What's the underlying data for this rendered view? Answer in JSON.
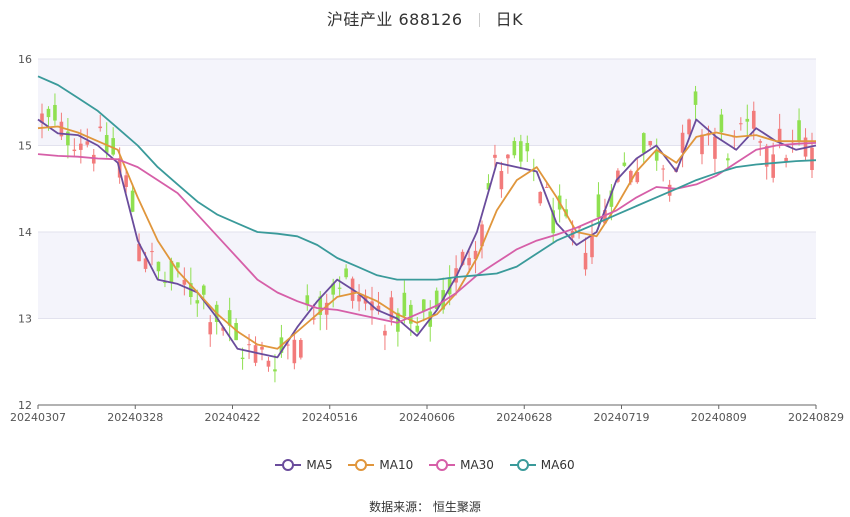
{
  "header": {
    "title": "沪硅产业 688126",
    "period": "日K"
  },
  "source_label": "数据来源： 恒生聚源",
  "colors": {
    "up": "#f27b7b",
    "down": "#8fe050",
    "MA5": "#6a4c9c",
    "MA10": "#e0963c",
    "MA30": "#d65fa8",
    "MA60": "#3a9a9a"
  },
  "chart_data": {
    "type": "candlestick",
    "title": "沪硅产业 688126",
    "ylim": [
      12,
      16
    ],
    "yticks": [
      12,
      13,
      14,
      15,
      16
    ],
    "xtick_labels": [
      "20240307",
      "20240328",
      "20240422",
      "20240516",
      "20240606",
      "20240628",
      "20240719",
      "20240809",
      "20240829"
    ],
    "series": [
      {
        "name": "MA5",
        "values": [
          15.3,
          15.14,
          15.12,
          15.0,
          14.8,
          13.9,
          13.45,
          13.4,
          13.3,
          13.0,
          12.65,
          12.6,
          12.55,
          12.9,
          13.2,
          13.45,
          13.3,
          13.1,
          13.0,
          12.8,
          13.1,
          13.5,
          14.0,
          14.8,
          14.75,
          14.7,
          14.1,
          13.85,
          14.0,
          14.6,
          14.85,
          15.0,
          14.7,
          15.3,
          15.1,
          14.95,
          15.2,
          15.05,
          14.95,
          15.0
        ]
      },
      {
        "name": "MA10",
        "values": [
          15.2,
          15.22,
          15.15,
          15.05,
          14.95,
          14.4,
          13.9,
          13.55,
          13.3,
          13.05,
          12.85,
          12.7,
          12.65,
          12.85,
          13.05,
          13.25,
          13.3,
          13.2,
          13.05,
          12.95,
          13.05,
          13.3,
          13.7,
          14.25,
          14.6,
          14.75,
          14.4,
          14.0,
          13.95,
          14.3,
          14.7,
          14.95,
          14.8,
          15.1,
          15.15,
          15.1,
          15.12,
          15.05,
          15.05,
          15.05
        ]
      },
      {
        "name": "MA30",
        "values": [
          14.9,
          14.88,
          14.87,
          14.85,
          14.84,
          14.75,
          14.6,
          14.45,
          14.2,
          13.95,
          13.7,
          13.45,
          13.3,
          13.2,
          13.12,
          13.1,
          13.05,
          13.0,
          12.95,
          13.05,
          13.15,
          13.3,
          13.5,
          13.65,
          13.8,
          13.9,
          13.97,
          14.05,
          14.15,
          14.25,
          14.4,
          14.52,
          14.5,
          14.55,
          14.65,
          14.8,
          14.95,
          15.0,
          15.02,
          15.03
        ]
      },
      {
        "name": "MA60",
        "values": [
          15.8,
          15.7,
          15.55,
          15.4,
          15.2,
          15.0,
          14.75,
          14.55,
          14.35,
          14.2,
          14.1,
          14.0,
          13.98,
          13.95,
          13.85,
          13.7,
          13.6,
          13.5,
          13.45,
          13.45,
          13.45,
          13.48,
          13.5,
          13.52,
          13.6,
          13.75,
          13.9,
          14.0,
          14.1,
          14.2,
          14.3,
          14.4,
          14.5,
          14.6,
          14.68,
          14.75,
          14.78,
          14.8,
          14.82,
          14.83
        ]
      }
    ]
  }
}
